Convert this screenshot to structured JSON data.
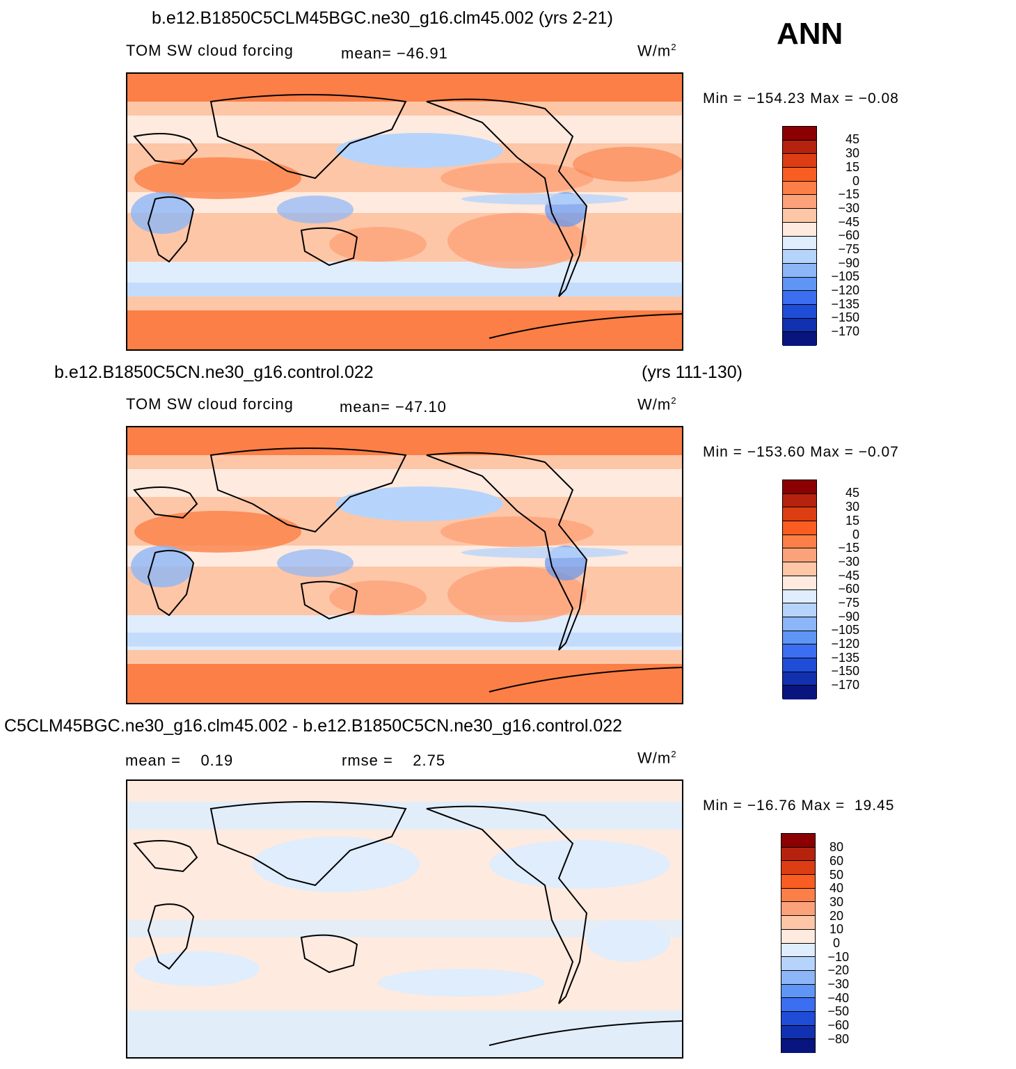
{
  "season": "ANN",
  "colors": {
    "diverging_16": [
      "#8b0000",
      "#b5230e",
      "#dc3d12",
      "#f95d22",
      "#fb7f46",
      "#fca27a",
      "#fdc6a7",
      "#feeadf",
      "#dfedfd",
      "#b6d4fb",
      "#8cb6f8",
      "#5f95f4",
      "#3b6ef0",
      "#1f4dd7",
      "#1231b0",
      "#08157e"
    ],
    "land_outline": "#000000",
    "ocean_fill_warm": "#fb7f46",
    "ocean_fill_cool": "#dfedfd"
  },
  "panels": [
    {
      "case_title": "b.e12.B1850C5CLM45BGC.ne30_g16.clm45.002 (yrs 2-21)",
      "case_years": "",
      "variable": "TOM SW cloud forcing",
      "mean_text": "mean= −46.91",
      "rmse_text": "",
      "units": "W/m",
      "units_sup": "2",
      "minmax": "Min = −154.23 Max =  −0.08",
      "colorbar_levels": [
        "45",
        "30",
        "15",
        "0",
        "−15",
        "−30",
        "−45",
        "−60",
        "−75",
        "−90",
        "−105",
        "−120",
        "−135",
        "−150",
        "−170"
      ]
    },
    {
      "case_title": "b.e12.B1850C5CN.ne30_g16.control.022",
      "case_years": "(yrs 111-130)",
      "variable": "TOM SW cloud forcing",
      "mean_text": "mean= −47.10",
      "rmse_text": "",
      "units": "W/m",
      "units_sup": "2",
      "minmax": "Min = −153.60 Max =  −0.07",
      "colorbar_levels": [
        "45",
        "30",
        "15",
        "0",
        "−15",
        "−30",
        "−45",
        "−60",
        "−75",
        "−90",
        "−105",
        "−120",
        "−135",
        "−150",
        "−170"
      ]
    },
    {
      "case_title": "C5CLM45BGC.ne30_g16.clm45.002 - b.e12.B1850C5CN.ne30_g16.control.022",
      "case_years": "",
      "variable": "",
      "mean_text": "mean =    0.19",
      "rmse_text": "rmse =    2.75",
      "units": "W/m",
      "units_sup": "2",
      "minmax": "Min = −16.76 Max =  19.45",
      "colorbar_levels": [
        "80",
        "60",
        "50",
        "40",
        "30",
        "20",
        "10",
        "0",
        "−10",
        "−20",
        "−30",
        "−40",
        "−50",
        "−60",
        "−80"
      ]
    }
  ]
}
